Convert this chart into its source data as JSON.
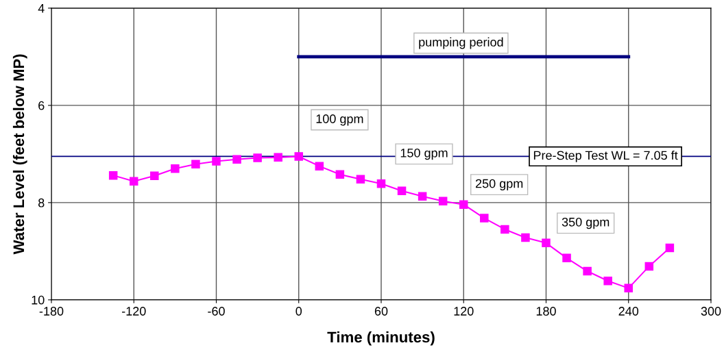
{
  "chart_data": {
    "type": "line",
    "xlabel": "Time (minutes)",
    "ylabel": "Water Level (feet below MP)",
    "xlim": [
      -180,
      300
    ],
    "xticks": [
      -180,
      -120,
      -60,
      0,
      60,
      120,
      180,
      240,
      300
    ],
    "ylim": [
      10,
      4
    ],
    "yticks": [
      4,
      6,
      8,
      10
    ],
    "grid": true,
    "legend": false,
    "series": [
      {
        "color": "#ff00ff",
        "marker": "square",
        "x": [
          -135,
          -120,
          -105,
          -90,
          -75,
          -60,
          -45,
          -30,
          -15,
          0,
          15,
          30,
          45,
          60,
          75,
          90,
          105,
          120,
          135,
          150,
          165,
          180,
          195,
          210,
          225,
          240,
          255,
          270
        ],
        "values": [
          7.44,
          7.56,
          7.45,
          7.3,
          7.21,
          7.15,
          7.11,
          7.08,
          7.07,
          7.05,
          7.25,
          7.42,
          7.52,
          7.61,
          7.76,
          7.87,
          7.97,
          8.04,
          8.32,
          8.55,
          8.72,
          8.83,
          9.14,
          9.41,
          9.61,
          9.76,
          9.31,
          8.93
        ]
      },
      {
        "color": "#000080",
        "marker": "none",
        "x": [
          0,
          240
        ],
        "values": [
          5,
          5
        ]
      }
    ],
    "ref_lines": [
      {
        "axis": "y",
        "value": 7.05,
        "label": "Pre-Step Test WL = 7.05 ft",
        "color": "#000080",
        "line_style": "solid"
      }
    ],
    "annotations": [
      "pumping period",
      "100 gpm",
      "150 gpm",
      "250 gpm",
      "350 gpm"
    ]
  }
}
